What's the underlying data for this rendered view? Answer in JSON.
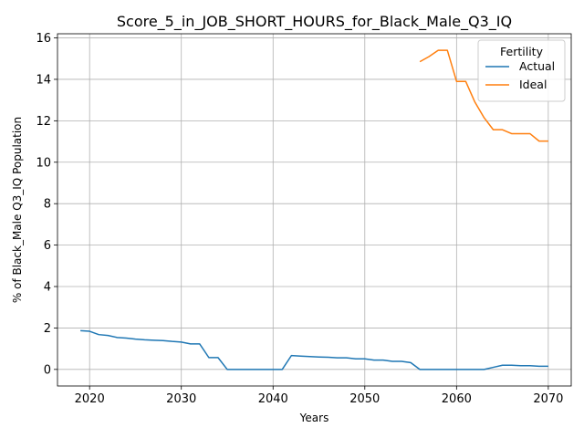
{
  "chart_data": {
    "type": "line",
    "title": "Score_5_in_JOB_SHORT_HOURS_for_Black_Male_Q3_IQ",
    "xlabel": "Years",
    "ylabel": "% of Black_Male Q3_IQ Population",
    "xlim": [
      2016.5,
      2072.5
    ],
    "ylim": [
      -0.8,
      16.2
    ],
    "xticks": [
      2020,
      2030,
      2040,
      2050,
      2060,
      2070
    ],
    "yticks": [
      0,
      2,
      4,
      6,
      8,
      10,
      12,
      14,
      16
    ],
    "grid": true,
    "legend": {
      "title": "Fertility",
      "placement": "top-right"
    },
    "series": [
      {
        "name": "Actual",
        "color": "#1f77b4",
        "x": [
          2019,
          2020,
          2021,
          2022,
          2023,
          2024,
          2025,
          2026,
          2027,
          2028,
          2029,
          2030,
          2031,
          2032,
          2033,
          2034,
          2035,
          2036,
          2037,
          2038,
          2039,
          2040,
          2041,
          2042,
          2043,
          2044,
          2045,
          2046,
          2047,
          2048,
          2049,
          2050,
          2051,
          2052,
          2053,
          2054,
          2055,
          2056,
          2057,
          2058,
          2059,
          2060,
          2061,
          2062,
          2063,
          2064,
          2065,
          2066,
          2067,
          2068,
          2069,
          2070
        ],
        "values": [
          1.87,
          1.84,
          1.68,
          1.64,
          1.54,
          1.51,
          1.46,
          1.43,
          1.41,
          1.39,
          1.35,
          1.32,
          1.23,
          1.23,
          0.57,
          0.57,
          0.0,
          0.0,
          0.0,
          0.0,
          0.0,
          0.0,
          0.0,
          0.67,
          0.64,
          0.62,
          0.6,
          0.59,
          0.56,
          0.56,
          0.51,
          0.51,
          0.45,
          0.45,
          0.39,
          0.39,
          0.33,
          0.0,
          0.0,
          0.0,
          0.0,
          0.0,
          0.0,
          0.0,
          0.0,
          0.1,
          0.2,
          0.2,
          0.18,
          0.18,
          0.15,
          0.15
        ]
      },
      {
        "name": "Ideal",
        "color": "#ff7f0e",
        "x": [
          2056,
          2057,
          2058,
          2059,
          2060,
          2061,
          2062,
          2063,
          2064,
          2065,
          2066,
          2067,
          2068,
          2069,
          2070
        ],
        "values": [
          14.85,
          15.1,
          15.4,
          15.4,
          13.9,
          13.9,
          12.9,
          12.15,
          11.57,
          11.57,
          11.38,
          11.38,
          11.38,
          11.02,
          11.02
        ]
      }
    ]
  }
}
